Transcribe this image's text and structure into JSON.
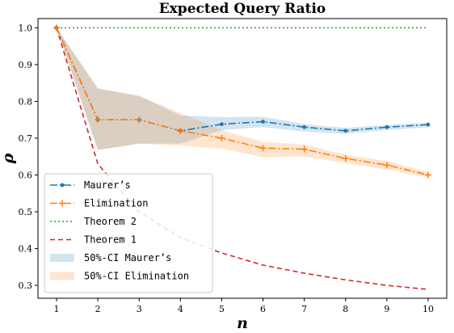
{
  "chart_data": {
    "type": "line",
    "title": "Expected Query Ratio",
    "xlabel": "n",
    "ylabel": "ρ",
    "x": [
      1,
      2,
      3,
      4,
      5,
      6,
      7,
      8,
      9,
      10
    ],
    "xlim": [
      0.55,
      10.45
    ],
    "ylim": [
      0.265,
      1.025
    ],
    "xticks": [
      "1",
      "2",
      "3",
      "4",
      "5",
      "6",
      "7",
      "8",
      "9",
      "10"
    ],
    "yticks": [
      "0.3",
      "0.4",
      "0.5",
      "0.6",
      "0.7",
      "0.8",
      "0.9",
      "1.0"
    ],
    "grid": false,
    "legend_position": "lower-left",
    "series": [
      {
        "name": "Maurer’s",
        "color": "#1f77b4",
        "style": "dashdot",
        "marker": "dot",
        "values": [
          1.0,
          0.75,
          0.75,
          0.72,
          0.738,
          0.745,
          0.73,
          0.72,
          0.73,
          0.737
        ]
      },
      {
        "name": "Elimination",
        "color": "#ff7f0e",
        "style": "dashdot",
        "marker": "plus",
        "values": [
          1.0,
          0.75,
          0.75,
          0.72,
          0.7,
          0.673,
          0.67,
          0.645,
          0.627,
          0.6
        ]
      },
      {
        "name": "Theorem 2",
        "color": "#2ca02c",
        "style": "dotted",
        "marker": "none",
        "values": [
          1.0,
          1.0,
          1.0,
          1.0,
          1.0,
          1.0,
          1.0,
          1.0,
          1.0,
          1.0
        ]
      },
      {
        "name": "Theorem 1",
        "color": "#d62728",
        "style": "dashed",
        "marker": "none",
        "values": [
          1.0,
          0.63,
          0.5,
          0.43,
          0.388,
          0.355,
          0.333,
          0.315,
          0.3,
          0.289
        ]
      }
    ],
    "bands": [
      {
        "name": "50%-CI Maurer’s",
        "color": "#1f77b4",
        "lower": [
          1.0,
          0.668,
          0.685,
          0.685,
          0.722,
          0.73,
          0.718,
          0.712,
          0.722,
          0.73
        ],
        "upper": [
          1.0,
          0.835,
          0.815,
          0.762,
          0.757,
          0.758,
          0.738,
          0.728,
          0.736,
          0.742
        ]
      },
      {
        "name": "50%-CI Elimination",
        "color": "#ff7f0e",
        "lower": [
          1.0,
          0.668,
          0.685,
          0.68,
          0.672,
          0.648,
          0.65,
          0.632,
          0.615,
          0.593
        ],
        "upper": [
          1.0,
          0.835,
          0.815,
          0.768,
          0.722,
          0.69,
          0.683,
          0.655,
          0.638,
          0.608
        ]
      }
    ]
  }
}
